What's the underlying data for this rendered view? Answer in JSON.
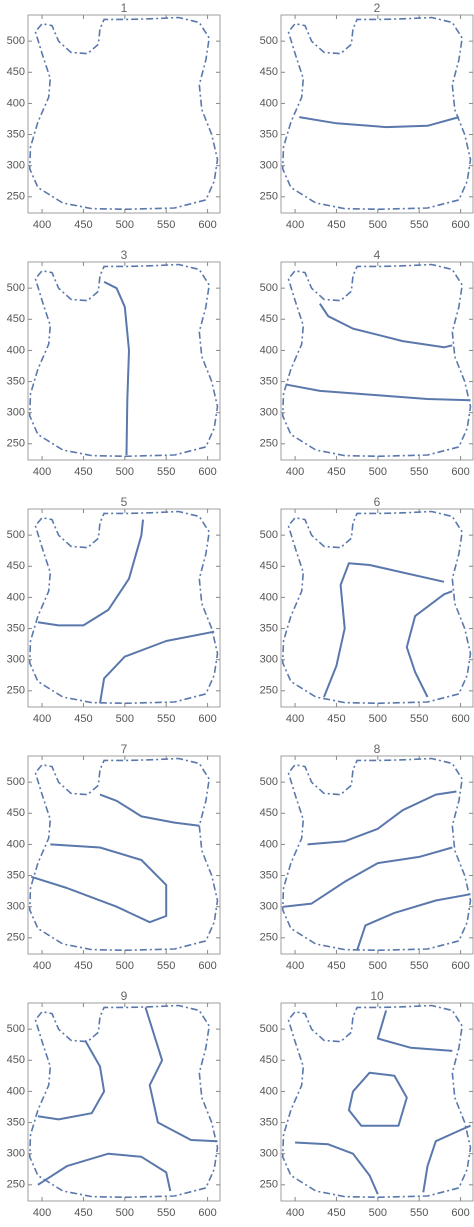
{
  "outline": {
    "x": [
      500,
      560,
      598,
      608,
      612,
      605,
      593,
      590,
      598,
      602,
      590,
      565,
      535,
      505,
      475,
      470,
      468,
      455,
      435,
      420,
      412,
      400,
      392,
      400,
      410,
      408,
      395,
      386,
      385,
      395,
      425,
      460,
      500
    ],
    "y": [
      230,
      232,
      245,
      275,
      310,
      350,
      390,
      430,
      470,
      505,
      530,
      538,
      536,
      535,
      535,
      520,
      495,
      480,
      482,
      500,
      525,
      528,
      515,
      480,
      440,
      410,
      370,
      330,
      295,
      265,
      240,
      231,
      230
    ]
  },
  "chart_data": [
    {
      "type": "line",
      "title": "1",
      "xlim": [
        383,
        615
      ],
      "ylim": [
        224,
        542
      ],
      "xticks": [
        400,
        450,
        500,
        550,
        600
      ],
      "yticks": [
        250,
        300,
        350,
        400,
        450,
        500
      ],
      "curves": []
    },
    {
      "type": "line",
      "title": "2",
      "xlim": [
        383,
        615
      ],
      "ylim": [
        224,
        542
      ],
      "xticks": [
        400,
        450,
        500,
        550,
        600
      ],
      "yticks": [
        250,
        300,
        350,
        400,
        450,
        500
      ],
      "curves": [
        {
          "x": [
            405,
            450,
            510,
            560,
            598
          ],
          "y": [
            378,
            368,
            362,
            364,
            378
          ]
        }
      ]
    },
    {
      "type": "line",
      "title": "3",
      "xlim": [
        383,
        615
      ],
      "ylim": [
        224,
        542
      ],
      "xticks": [
        400,
        450,
        500,
        550,
        600
      ],
      "yticks": [
        250,
        300,
        350,
        400,
        450,
        500
      ],
      "curves": [
        {
          "x": [
            475,
            490,
            500,
            505,
            503,
            502
          ],
          "y": [
            510,
            500,
            470,
            400,
            320,
            232
          ]
        }
      ]
    },
    {
      "type": "line",
      "title": "4",
      "xlim": [
        383,
        615
      ],
      "ylim": [
        224,
        542
      ],
      "xticks": [
        400,
        450,
        500,
        550,
        600
      ],
      "yticks": [
        250,
        300,
        350,
        400,
        450,
        500
      ],
      "curves": [
        {
          "x": [
            430,
            440,
            470,
            530,
            580,
            590
          ],
          "y": [
            475,
            455,
            435,
            415,
            405,
            408
          ]
        },
        {
          "x": [
            390,
            430,
            500,
            560,
            612
          ],
          "y": [
            345,
            335,
            328,
            322,
            320
          ]
        }
      ]
    },
    {
      "type": "line",
      "title": "5",
      "xlim": [
        383,
        615
      ],
      "ylim": [
        224,
        542
      ],
      "xticks": [
        400,
        450,
        500,
        550,
        600
      ],
      "yticks": [
        250,
        300,
        350,
        400,
        450,
        500
      ],
      "curves": [
        {
          "x": [
            395,
            420,
            450,
            480,
            505,
            520,
            522
          ],
          "y": [
            360,
            355,
            355,
            380,
            430,
            500,
            525
          ]
        },
        {
          "x": [
            470,
            475,
            500,
            550,
            608
          ],
          "y": [
            230,
            270,
            305,
            330,
            345
          ]
        }
      ]
    },
    {
      "type": "line",
      "title": "6",
      "xlim": [
        383,
        615
      ],
      "ylim": [
        224,
        542
      ],
      "xticks": [
        400,
        450,
        500,
        550,
        600
      ],
      "yticks": [
        250,
        300,
        350,
        400,
        450,
        500
      ],
      "curves": [
        {
          "x": [
            435,
            450,
            460,
            455,
            465,
            490,
            530,
            580
          ],
          "y": [
            240,
            290,
            350,
            420,
            455,
            452,
            440,
            425
          ]
        },
        {
          "x": [
            560,
            545,
            535,
            545,
            580,
            590
          ],
          "y": [
            240,
            280,
            320,
            370,
            405,
            410
          ]
        }
      ]
    },
    {
      "type": "line",
      "title": "7",
      "xlim": [
        383,
        615
      ],
      "ylim": [
        224,
        542
      ],
      "xticks": [
        400,
        450,
        500,
        550,
        600
      ],
      "yticks": [
        250,
        300,
        350,
        400,
        450,
        500
      ],
      "curves": [
        {
          "x": [
            470,
            490,
            520,
            560,
            590
          ],
          "y": [
            480,
            470,
            445,
            435,
            430
          ]
        },
        {
          "x": [
            410,
            470,
            520,
            550,
            550,
            530,
            490,
            430,
            387
          ],
          "y": [
            400,
            395,
            375,
            335,
            285,
            275,
            300,
            330,
            348
          ]
        }
      ]
    },
    {
      "type": "line",
      "title": "8",
      "xlim": [
        383,
        615
      ],
      "ylim": [
        224,
        542
      ],
      "xticks": [
        400,
        450,
        500,
        550,
        600
      ],
      "yticks": [
        250,
        300,
        350,
        400,
        450,
        500
      ],
      "curves": [
        {
          "x": [
            415,
            460,
            500,
            530,
            570,
            595
          ],
          "y": [
            400,
            405,
            425,
            455,
            480,
            485
          ]
        },
        {
          "x": [
            386,
            420,
            460,
            500,
            550,
            590
          ],
          "y": [
            300,
            305,
            340,
            370,
            380,
            395
          ]
        },
        {
          "x": [
            475,
            485,
            520,
            570,
            612
          ],
          "y": [
            230,
            270,
            290,
            310,
            320
          ]
        }
      ]
    },
    {
      "type": "line",
      "title": "9",
      "xlim": [
        383,
        615
      ],
      "ylim": [
        224,
        542
      ],
      "xticks": [
        400,
        450,
        500,
        550,
        600
      ],
      "yticks": [
        250,
        300,
        350,
        400,
        450,
        500
      ],
      "curves": [
        {
          "x": [
            452,
            470,
            475,
            460,
            420,
            395
          ],
          "y": [
            482,
            440,
            400,
            365,
            355,
            360
          ]
        },
        {
          "x": [
            525,
            545,
            530,
            540,
            580,
            612
          ],
          "y": [
            535,
            450,
            410,
            350,
            322,
            320
          ]
        },
        {
          "x": [
            395,
            430,
            480,
            520,
            550,
            555
          ],
          "y": [
            250,
            280,
            300,
            295,
            270,
            240
          ]
        }
      ]
    },
    {
      "type": "line",
      "title": "10",
      "xlim": [
        383,
        615
      ],
      "ylim": [
        224,
        542
      ],
      "xticks": [
        400,
        450,
        500,
        550,
        600
      ],
      "yticks": [
        250,
        300,
        350,
        400,
        450,
        500
      ],
      "curves": [
        {
          "x": [
            400,
            440,
            470,
            490,
            500
          ],
          "y": [
            318,
            315,
            300,
            265,
            235
          ]
        },
        {
          "x": [
            470,
            490,
            520,
            535,
            525,
            480,
            465,
            470
          ],
          "y": [
            400,
            430,
            425,
            390,
            345,
            345,
            370,
            400
          ]
        },
        {
          "x": [
            555,
            560,
            570,
            600,
            612
          ],
          "y": [
            238,
            280,
            320,
            338,
            345
          ]
        },
        {
          "x": [
            510,
            500,
            540,
            590
          ],
          "y": [
            530,
            485,
            470,
            465
          ]
        }
      ]
    }
  ]
}
